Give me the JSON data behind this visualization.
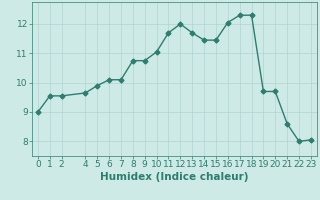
{
  "x": [
    0,
    1,
    2,
    4,
    5,
    6,
    7,
    8,
    9,
    10,
    11,
    12,
    13,
    14,
    15,
    16,
    17,
    18,
    19,
    20,
    21,
    22,
    23
  ],
  "y": [
    9.0,
    9.55,
    9.55,
    9.65,
    9.9,
    10.1,
    10.1,
    10.75,
    10.75,
    11.05,
    11.7,
    12.0,
    11.7,
    11.45,
    11.45,
    12.05,
    12.3,
    12.3,
    9.7,
    9.7,
    8.6,
    8.0,
    8.05
  ],
  "line_color": "#2e7d6e",
  "marker": "D",
  "marker_size": 2.5,
  "linewidth": 1.0,
  "bg_color": "#ceeae7",
  "grid_color": "#b0d4d0",
  "xlabel": "Humidex (Indice chaleur)",
  "ylim": [
    7.5,
    12.75
  ],
  "xlim": [
    -0.5,
    23.5
  ],
  "yticks": [
    8,
    9,
    10,
    11,
    12
  ],
  "xticks": [
    0,
    1,
    2,
    4,
    5,
    6,
    7,
    8,
    9,
    10,
    11,
    12,
    13,
    14,
    15,
    16,
    17,
    18,
    19,
    20,
    21,
    22,
    23
  ],
  "tick_color": "#2e7d6e",
  "xlabel_fontsize": 7.5,
  "tick_fontsize": 6.5
}
